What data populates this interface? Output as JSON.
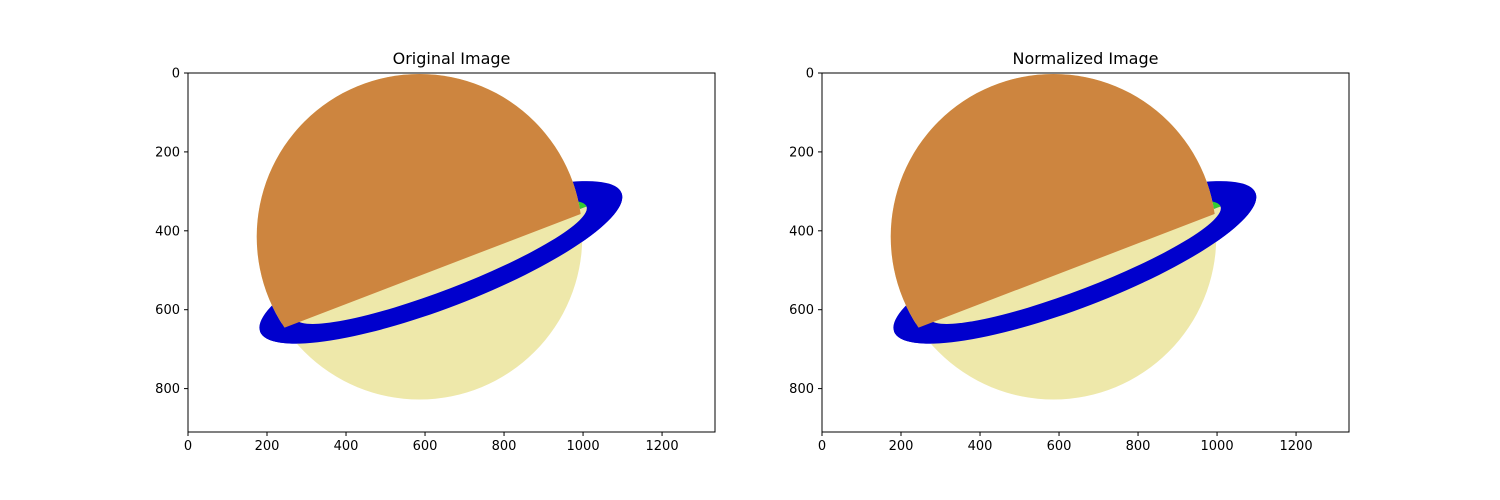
{
  "chart_data": [
    {
      "type": "image",
      "title": "Original Image",
      "xlabel": "",
      "ylabel": "",
      "xlim": [
        0,
        1334
      ],
      "ylim": [
        910,
        0
      ],
      "xticks": [
        0,
        200,
        400,
        600,
        800,
        1000,
        1200
      ],
      "yticks": [
        0,
        200,
        400,
        600,
        800
      ],
      "grid": false,
      "image": {
        "description_colors": {
          "planet_lower": "#EEE8AA",
          "planet_upper": "#CD853F",
          "ring_outer": "#0000CD",
          "ring_inner_light": "#32CD32",
          "ring_inner_dark": "#008000"
        },
        "planet": {
          "cx": 586,
          "cy": 415,
          "r": 412
        },
        "ring": {
          "cx": 640,
          "cy": 480,
          "angle_deg": -21,
          "outer_rx": 490,
          "outer_ry": 115,
          "inner_rx": 395,
          "inner_ry": 70
        }
      }
    },
    {
      "type": "image",
      "title": "Normalized Image",
      "xlabel": "",
      "ylabel": "",
      "xlim": [
        0,
        1334
      ],
      "ylim": [
        910,
        0
      ],
      "xticks": [
        0,
        200,
        400,
        600,
        800,
        1000,
        1200
      ],
      "yticks": [
        0,
        200,
        400,
        600,
        800
      ],
      "grid": false,
      "image": {
        "description_colors": {
          "planet_lower": "#EEE8AA",
          "planet_upper": "#CD853F",
          "ring_outer": "#0000CD",
          "ring_inner_light": "#32CD32",
          "ring_inner_dark": "#008000"
        },
        "planet": {
          "cx": 586,
          "cy": 415,
          "r": 412
        },
        "ring": {
          "cx": 640,
          "cy": 480,
          "angle_deg": -21,
          "outer_rx": 490,
          "outer_ry": 115,
          "inner_rx": 395,
          "inner_ry": 70
        }
      }
    }
  ]
}
